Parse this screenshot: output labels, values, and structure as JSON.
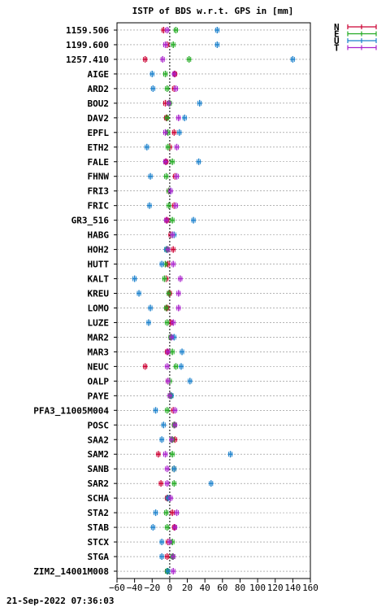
{
  "chart_data": {
    "type": "scatter",
    "title": "ISTP of BDS w.r.t. GPS in [mm]",
    "xlim": [
      -60,
      160
    ],
    "xticks": [
      -60,
      -40,
      -20,
      0,
      20,
      40,
      60,
      80,
      100,
      120,
      140,
      160
    ],
    "legend": {
      "placement": "top-right outside",
      "entries": [
        {
          "label": "N",
          "color": "#cc0033"
        },
        {
          "label": "E",
          "color": "#22aa22"
        },
        {
          "label": "U",
          "color": "#1a80cc"
        },
        {
          "label": "T",
          "color": "#aa22cc"
        }
      ]
    },
    "categories": [
      "1159.506",
      "1199.600",
      "1257.410",
      "AIGE",
      "ARD2",
      "BOU2",
      "DAV2",
      "EPFL",
      "ETH2",
      "FALE",
      "FHNW",
      "FRI3",
      "FRIC",
      "GR3_516",
      "HABG",
      "HOH2",
      "HUTT",
      "KALT",
      "KREU",
      "LOMO",
      "LUZE",
      "MAR2",
      "MAR3",
      "NEUC",
      "OALP",
      "PAYE",
      "PFA3_11005M004",
      "POSC",
      "SAA2",
      "SAM2",
      "SANB",
      "SAR2",
      "SCHA",
      "STA2",
      "STAB",
      "STCX",
      "STGA",
      "ZIM2_14001M008"
    ],
    "series": [
      {
        "name": "N",
        "color": "#cc0033",
        "values": [
          -7,
          -3,
          -28,
          6,
          5,
          -5,
          -4,
          5,
          0,
          -4,
          6,
          -1,
          5,
          -3,
          1,
          4,
          -2,
          -4,
          0,
          -3,
          1,
          1,
          -3,
          -28,
          -2,
          1,
          4,
          5,
          6,
          -13,
          5,
          -10,
          -3,
          3,
          5,
          -2,
          -3,
          -3
        ]
      },
      {
        "name": "E",
        "color": "#22aa22",
        "values": [
          7,
          4,
          22,
          -5,
          -3,
          0,
          -3,
          -2,
          -2,
          3,
          -4,
          -1,
          -1,
          3,
          3,
          -3,
          -5,
          -6,
          -1,
          -4,
          -3,
          1,
          3,
          7,
          0,
          1,
          -3,
          5,
          3,
          3,
          5,
          5,
          -2,
          -4,
          -3,
          3,
          3,
          -3
        ]
      },
      {
        "name": "U",
        "color": "#1a80cc",
        "values": [
          54,
          54,
          140,
          -20,
          -19,
          34,
          17,
          11,
          -26,
          33,
          -22,
          1,
          -23,
          27,
          5,
          -4,
          -9,
          -40,
          -35,
          -22,
          -24,
          5,
          14,
          13,
          23,
          2,
          -16,
          -7,
          -9,
          69,
          5,
          47,
          -2,
          -16,
          -19,
          -9,
          -9,
          -2
        ]
      },
      {
        "name": "T",
        "color": "#aa22cc",
        "values": [
          -3,
          -5,
          -8,
          5,
          7,
          -1,
          10,
          -5,
          8,
          -5,
          8,
          1,
          7,
          -4,
          3,
          -2,
          4,
          12,
          10,
          10,
          4,
          2,
          -2,
          -3,
          -2,
          0,
          6,
          6,
          2,
          -5,
          -3,
          -3,
          1,
          8,
          6,
          0,
          4,
          4
        ]
      }
    ]
  },
  "footer": {
    "timestamp": "21-Sep-2022 07:36:03"
  }
}
